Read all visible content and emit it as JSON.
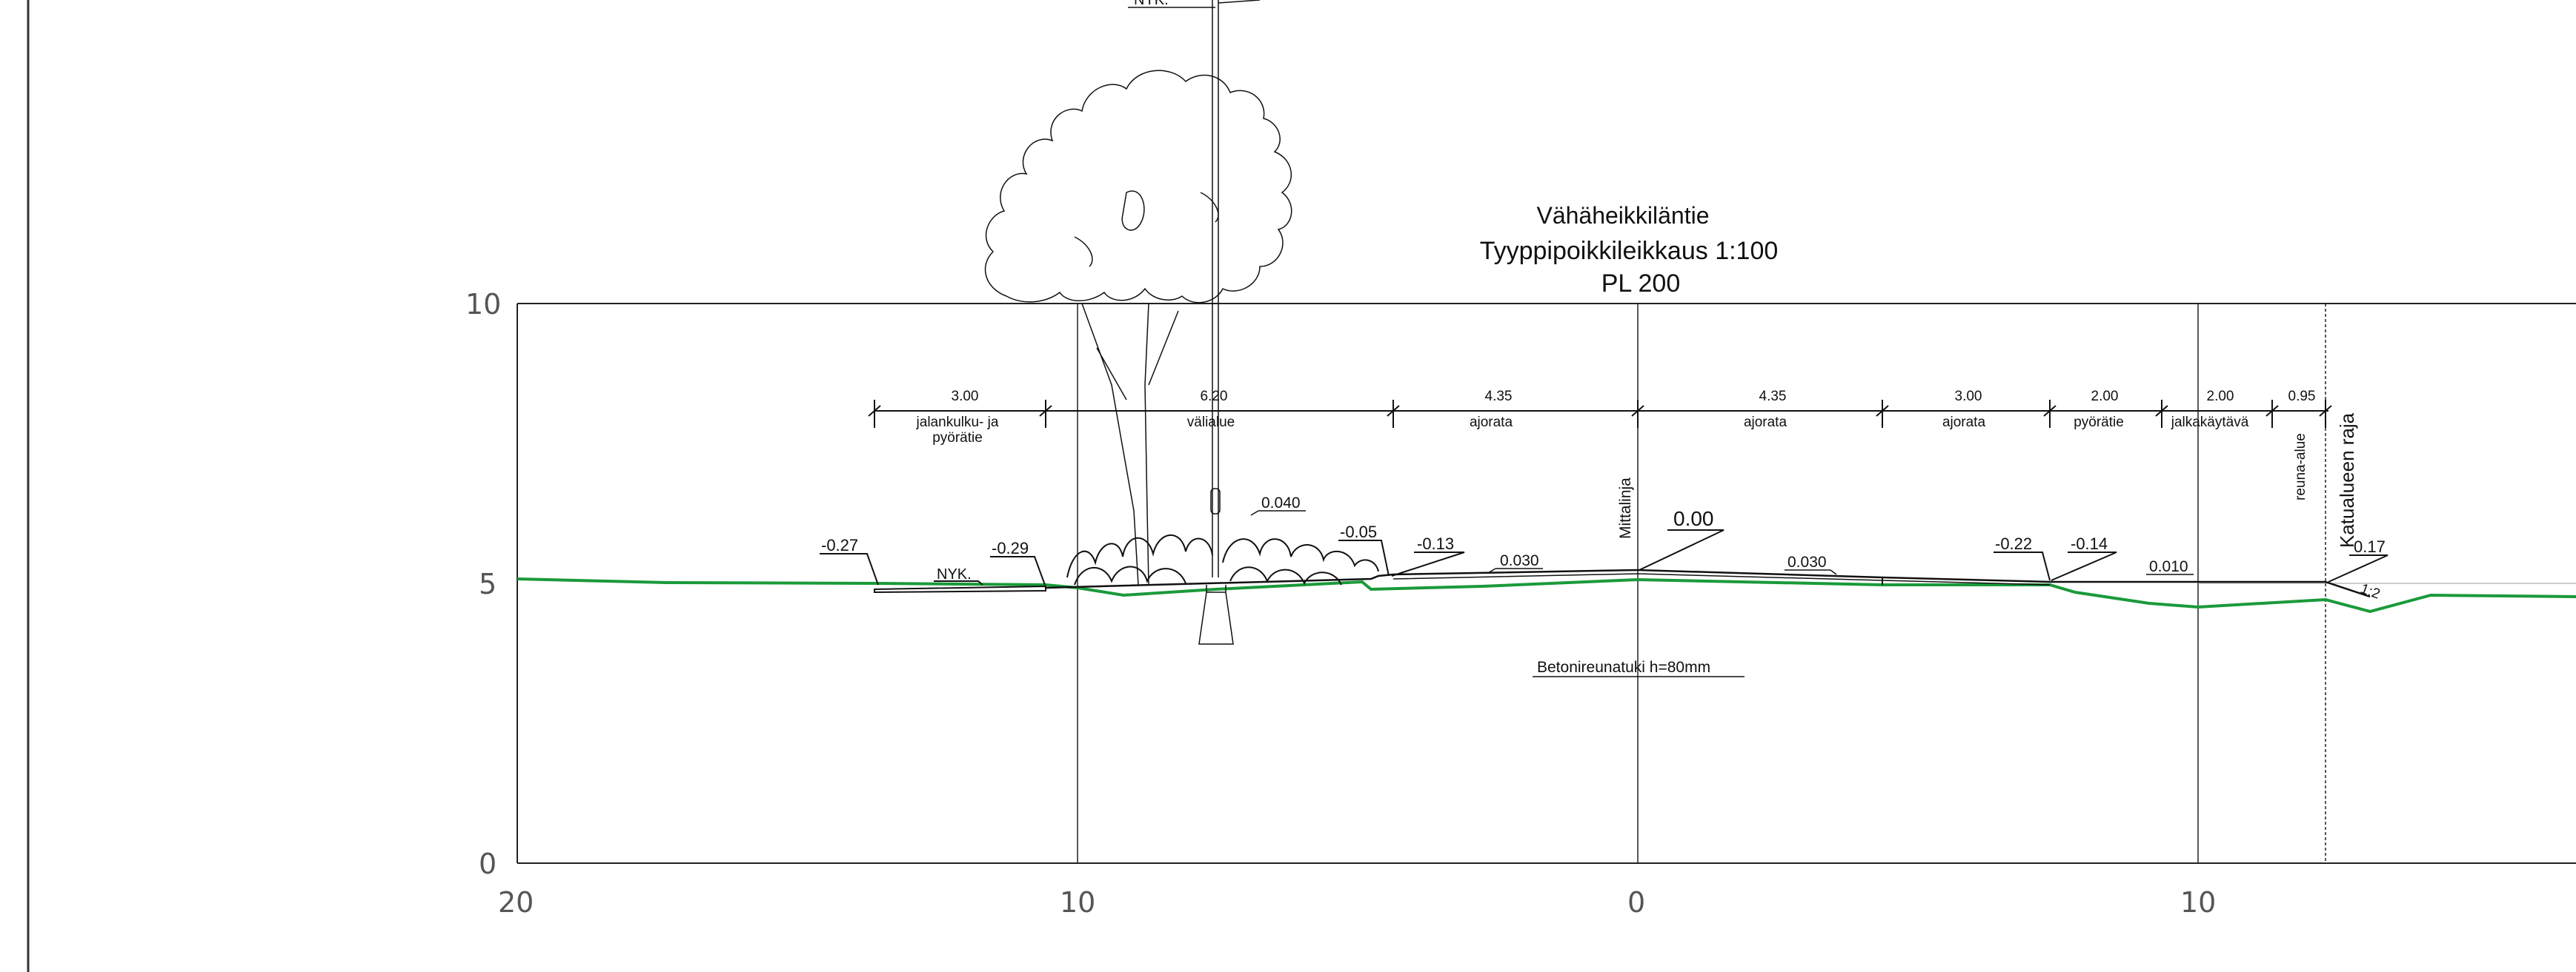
{
  "title": {
    "road_name": "Vähäheikkiläntie",
    "section_name": "Tyyppipoikkileikkaus 1:100",
    "station": "PL 200"
  },
  "axes": {
    "y_ticks": [
      "10",
      "5",
      "0"
    ],
    "x_ticks": [
      "20",
      "10",
      "0",
      "10"
    ]
  },
  "widths": [
    {
      "value": "3.00",
      "label": "jalankulku- ja\npyörätie"
    },
    {
      "value": "6.20",
      "label": "välialue"
    },
    {
      "value": "4.35",
      "label": "ajorata"
    },
    {
      "value": "4.35",
      "label": "ajorata"
    },
    {
      "value": "3.00",
      "label": "ajorata"
    },
    {
      "value": "2.00",
      "label": "pyörätie"
    },
    {
      "value": "2.00",
      "label": "jalkakäytävä"
    },
    {
      "value": "0.95",
      "label": ""
    }
  ],
  "vertical_labels": {
    "centerline": "Mittalinja",
    "edge_area": "reuna-alue",
    "street_boundary": "Katualueen raja"
  },
  "levels": [
    "-0.27",
    "-0.29",
    "-0.05",
    "-0.13",
    "0.00",
    "-0.22",
    "-0.14",
    "0.17"
  ],
  "slopes": [
    "0.040",
    "0.030",
    "0.030",
    "0.010",
    "1:2"
  ],
  "existing_labels": [
    "NYK.",
    "NYK."
  ],
  "note": "Betonireunatuki h=80mm",
  "colors": {
    "existing_ground": "#1a9a3a",
    "lines": "#111111"
  }
}
